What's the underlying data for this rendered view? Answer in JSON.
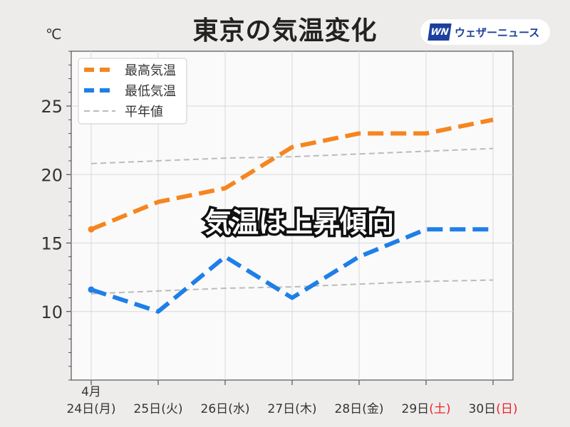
{
  "title": "東京の気温変化",
  "brand": {
    "logo": "WN",
    "name": "ウェザーニュース"
  },
  "banner": "気温は上昇傾向",
  "colors": {
    "max": "#f5861f",
    "min": "#1e7fe8",
    "normal": "#bbbbbb",
    "weekend": "#e8262a"
  },
  "chart_data": {
    "type": "line",
    "unit": "℃",
    "ylim": [
      5,
      29
    ],
    "yticks": [
      10,
      15,
      20,
      25
    ],
    "grid": true,
    "legend": "top-left",
    "month_label": "4月",
    "categories": [
      {
        "day": "24日",
        "wd": "(月)",
        "weekend": false
      },
      {
        "day": "25日",
        "wd": "(火)",
        "weekend": false
      },
      {
        "day": "26日",
        "wd": "(水)",
        "weekend": false
      },
      {
        "day": "27日",
        "wd": "(木)",
        "weekend": false
      },
      {
        "day": "28日",
        "wd": "(金)",
        "weekend": false
      },
      {
        "day": "29日",
        "wd": "(土)",
        "weekend": true
      },
      {
        "day": "30日",
        "wd": "(日)",
        "weekend": true
      }
    ],
    "series": [
      {
        "name": "最高気温",
        "color": "#f5861f",
        "style": "bold-dashed",
        "values": [
          16,
          18,
          19,
          22,
          23,
          23,
          24
        ]
      },
      {
        "name": "最低気温",
        "color": "#1e7fe8",
        "style": "bold-dashed",
        "values": [
          11.6,
          10,
          14,
          11,
          14,
          16,
          16
        ]
      },
      {
        "name": "平年値",
        "color": "#bbbbbb",
        "style": "thin-dashed",
        "values": [
          20.8,
          21.0,
          21.2,
          21.3,
          21.5,
          21.7,
          21.9
        ]
      },
      {
        "name": "",
        "color": "#bbbbbb",
        "style": "thin-dashed",
        "values": [
          11.3,
          11.5,
          11.7,
          11.8,
          12.0,
          12.2,
          12.3
        ]
      }
    ]
  }
}
